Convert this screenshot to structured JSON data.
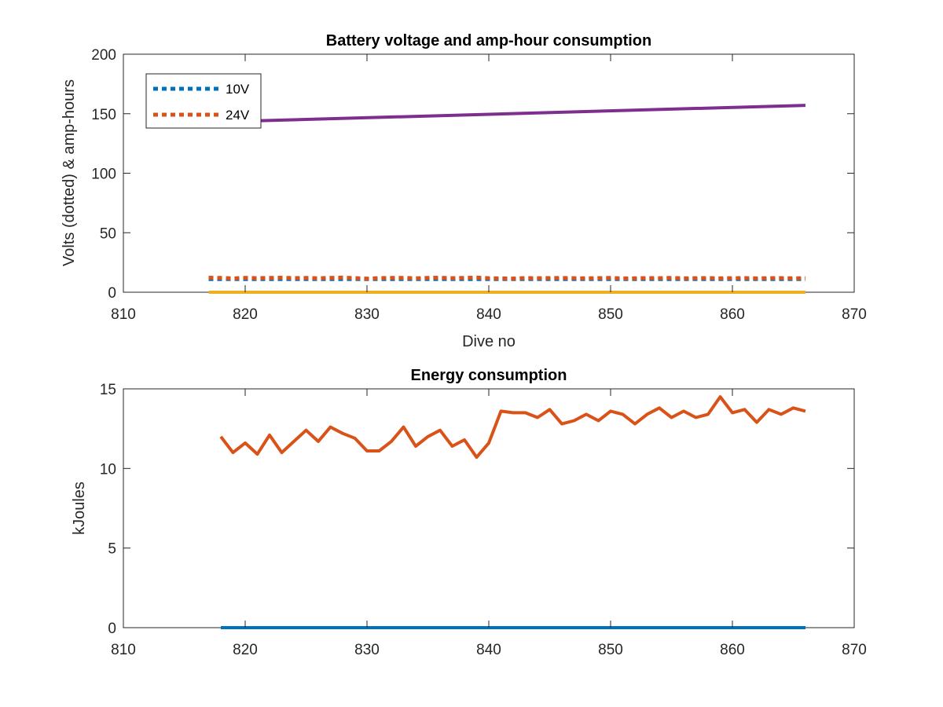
{
  "chart_data": [
    {
      "type": "line",
      "title": "Battery voltage and amp-hour consumption",
      "xlabel": "Dive no",
      "ylabel": "Volts (dotted) & amp-hours",
      "xlim": [
        810,
        870
      ],
      "ylim": [
        0,
        200
      ],
      "xticks": [
        810,
        820,
        830,
        840,
        850,
        860,
        870
      ],
      "yticks": [
        0,
        50,
        100,
        150,
        200
      ],
      "grid": false,
      "legend": {
        "placement": "top-left",
        "entries": [
          "10V",
          "24V"
        ]
      },
      "series": [
        {
          "name": "10V",
          "style": "dotted",
          "color": "#0072BD",
          "x": [
            817,
            866
          ],
          "y": [
            11,
            11
          ]
        },
        {
          "name": "24V",
          "style": "dotted",
          "color": "#D95319",
          "x": [
            817,
            818,
            819,
            820,
            821,
            822,
            823,
            824,
            825,
            826,
            827,
            828,
            829,
            830,
            831,
            832,
            833,
            834,
            835,
            836,
            837,
            838,
            839,
            840,
            841,
            842,
            843,
            844,
            845,
            846,
            847,
            848,
            849,
            850,
            851,
            852,
            853,
            854,
            855,
            856,
            857,
            858,
            859,
            860,
            861,
            862,
            863,
            864,
            865,
            866
          ],
          "y": [
            12.2,
            12.0,
            11.6,
            12.1,
            11.8,
            12.0,
            12.2,
            11.9,
            12.0,
            11.7,
            12.1,
            12.3,
            11.9,
            11.4,
            11.8,
            12.0,
            12.1,
            11.7,
            12.0,
            12.2,
            11.8,
            12.1,
            12.3,
            11.8,
            11.6,
            11.5,
            11.9,
            11.8,
            11.9,
            12.0,
            11.8,
            11.7,
            11.9,
            12.0,
            11.6,
            11.7,
            11.9,
            11.8,
            12.0,
            11.7,
            11.8,
            11.9,
            11.7,
            11.8,
            11.9,
            11.6,
            11.8,
            11.9,
            11.7,
            11.8
          ]
        },
        {
          "style": "solid",
          "color": "#7E2F8E",
          "x": [
            821,
            866
          ],
          "y": [
            144,
            157
          ]
        },
        {
          "style": "solid",
          "color": "#EDB120",
          "x": [
            817,
            866
          ],
          "y": [
            0,
            0
          ]
        }
      ]
    },
    {
      "type": "line",
      "title": "Energy consumption",
      "xlabel": "",
      "ylabel": "kJoules",
      "xlim": [
        810,
        870
      ],
      "ylim": [
        0,
        15
      ],
      "xticks": [
        810,
        820,
        830,
        840,
        850,
        860,
        870
      ],
      "yticks": [
        0,
        5,
        10,
        15
      ],
      "grid": false,
      "series": [
        {
          "style": "solid",
          "color": "#D95319",
          "x": [
            818,
            819,
            820,
            821,
            822,
            823,
            824,
            825,
            826,
            827,
            828,
            829,
            830,
            831,
            832,
            833,
            834,
            835,
            836,
            837,
            838,
            839,
            840,
            841,
            842,
            843,
            844,
            845,
            846,
            847,
            848,
            849,
            850,
            851,
            852,
            853,
            854,
            855,
            856,
            857,
            858,
            859,
            860,
            861,
            862,
            863,
            864,
            865,
            866
          ],
          "y": [
            12.0,
            11.0,
            11.6,
            10.9,
            12.1,
            11.0,
            11.7,
            12.4,
            11.7,
            12.6,
            12.2,
            11.9,
            11.1,
            11.1,
            11.7,
            12.6,
            11.4,
            12.0,
            12.4,
            11.4,
            11.8,
            10.7,
            11.6,
            13.6,
            13.5,
            13.5,
            13.2,
            13.7,
            12.8,
            13.0,
            13.4,
            13.0,
            13.6,
            13.4,
            12.8,
            13.4,
            13.8,
            13.2,
            13.6,
            13.2,
            13.4,
            14.5,
            13.5,
            13.7,
            12.9,
            13.7,
            13.4,
            13.8,
            13.6
          ]
        },
        {
          "style": "solid",
          "color": "#0072BD",
          "x": [
            818,
            866
          ],
          "y": [
            0,
            0
          ]
        }
      ]
    }
  ]
}
